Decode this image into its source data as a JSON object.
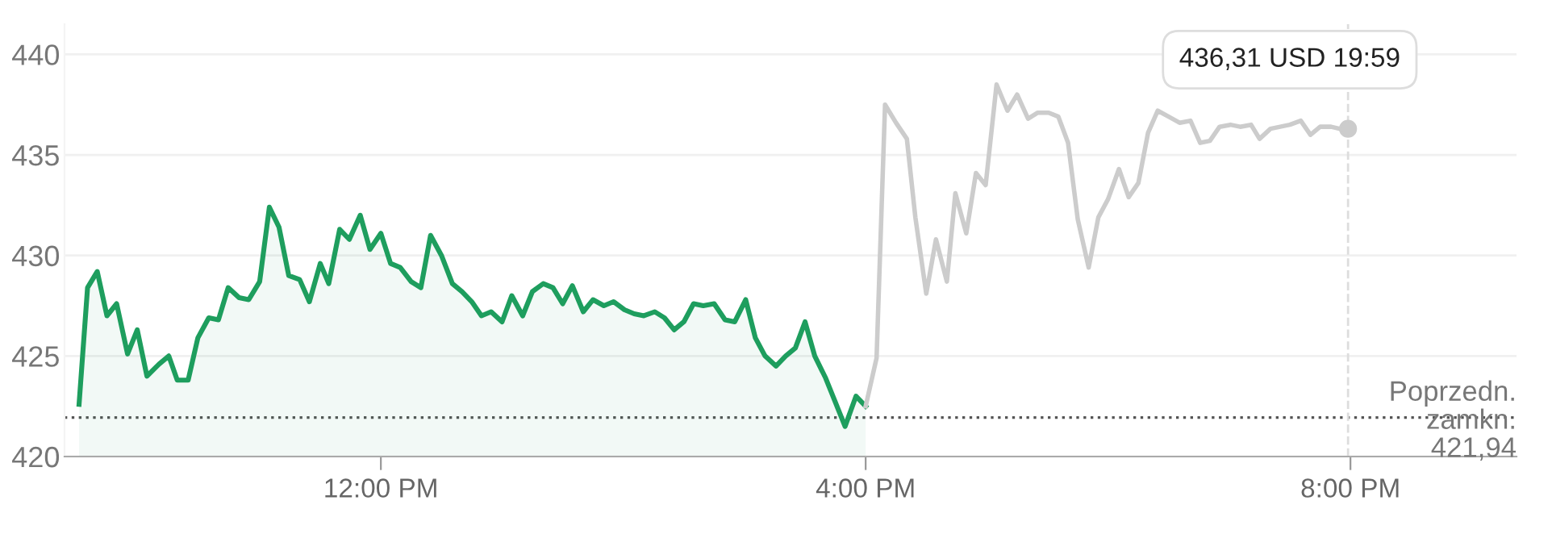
{
  "chart_data": {
    "type": "line",
    "series": [
      {
        "type": "area",
        "color": "#1e9e5e",
        "x": [
          9.51,
          9.58,
          9.66,
          9.74,
          9.82,
          9.91,
          9.99,
          10.07,
          10.17,
          10.25,
          10.32,
          10.41,
          10.49,
          10.58,
          10.66,
          10.74,
          10.83,
          10.91,
          11.0,
          11.08,
          11.16,
          11.24,
          11.33,
          11.41,
          11.5,
          11.57,
          11.66,
          11.74,
          11.83,
          11.91,
          12.0,
          12.08,
          12.16,
          12.25,
          12.33,
          12.41,
          12.5,
          12.59,
          12.67,
          12.75,
          12.83,
          12.91,
          13.0,
          13.08,
          13.17,
          13.25,
          13.34,
          13.42,
          13.5,
          13.58,
          13.67,
          13.75,
          13.84,
          13.92,
          14.01,
          14.09,
          14.17,
          14.26,
          14.34,
          14.42,
          14.5,
          14.58,
          14.66,
          14.75,
          14.84,
          14.92,
          15.01,
          15.09,
          15.17,
          15.26,
          15.34,
          15.42,
          15.5,
          15.58,
          15.67,
          15.75,
          15.83,
          15.92,
          16.0
        ],
        "values": [
          422.6,
          428.4,
          429.2,
          427.0,
          427.6,
          425.1,
          426.3,
          424.0,
          424.6,
          425.0,
          423.8,
          423.8,
          425.9,
          426.9,
          426.8,
          428.4,
          427.9,
          427.8,
          428.7,
          432.4,
          431.4,
          429.0,
          428.8,
          427.7,
          429.6,
          428.6,
          431.3,
          430.8,
          432.0,
          430.3,
          431.1,
          429.6,
          429.4,
          428.7,
          428.4,
          431.0,
          430.0,
          428.6,
          428.2,
          427.7,
          427.0,
          427.2,
          426.7,
          428.0,
          427.0,
          428.2,
          428.6,
          428.4,
          427.6,
          428.5,
          427.2,
          427.8,
          427.5,
          427.7,
          427.3,
          427.1,
          427.0,
          427.2,
          426.9,
          426.3,
          426.7,
          427.6,
          427.5,
          427.6,
          426.8,
          426.7,
          427.8,
          425.9,
          425.0,
          424.5,
          425.0,
          425.4,
          426.7,
          425.0,
          423.9,
          422.7,
          421.5,
          423.0,
          422.5
        ]
      },
      {
        "color": "#cccccc",
        "x": [
          16.0,
          16.09,
          16.16,
          16.25,
          16.34,
          16.41,
          16.5,
          16.58,
          16.67,
          16.74,
          16.83,
          16.91,
          16.99,
          17.08,
          17.17,
          17.25,
          17.34,
          17.42,
          17.51,
          17.59,
          17.67,
          17.75,
          17.84,
          17.92,
          18.0,
          18.09,
          18.17,
          18.25,
          18.33,
          18.41,
          18.5,
          18.59,
          18.68,
          18.76,
          18.84,
          18.92,
          19.01,
          19.09,
          19.18,
          19.25,
          19.34,
          19.42,
          19.5,
          19.59,
          19.67,
          19.75,
          19.84,
          19.91,
          19.98
        ],
        "values": [
          422.5,
          424.9,
          437.5,
          436.6,
          435.8,
          431.9,
          428.1,
          430.8,
          428.7,
          433.1,
          431.1,
          434.1,
          433.5,
          438.5,
          437.2,
          438.0,
          436.8,
          437.1,
          437.1,
          436.9,
          435.6,
          431.8,
          429.4,
          431.9,
          432.8,
          434.3,
          432.9,
          433.6,
          436.1,
          437.2,
          436.9,
          436.6,
          436.7,
          435.6,
          435.7,
          436.4,
          436.5,
          436.4,
          436.5,
          435.8,
          436.3,
          436.4,
          436.5,
          436.7,
          436.0,
          436.4,
          436.4,
          436.3,
          436.3
        ]
      }
    ],
    "xlim": [
      9.39,
      21.37
    ],
    "xticks": [
      {
        "value": 12,
        "label": "12:00 PM"
      },
      {
        "value": 16,
        "label": "4:00 PM"
      },
      {
        "value": 20,
        "label": "8:00 PM"
      }
    ],
    "ylim": [
      420,
      441.5
    ],
    "yticks": [
      420,
      425,
      430,
      435,
      440
    ],
    "grid": "y",
    "ref_lines": [
      {
        "axis": "y",
        "value": 421.94,
        "label": "Poprzedn.\nzamkn.\n421,94",
        "color": "#555555",
        "line_style": "dotted"
      },
      {
        "axis": "x",
        "value": 19.98,
        "color": "#dddddd",
        "line_style": "dashed"
      }
    ],
    "annotations": [
      "436,31 USD 19:59"
    ]
  }
}
